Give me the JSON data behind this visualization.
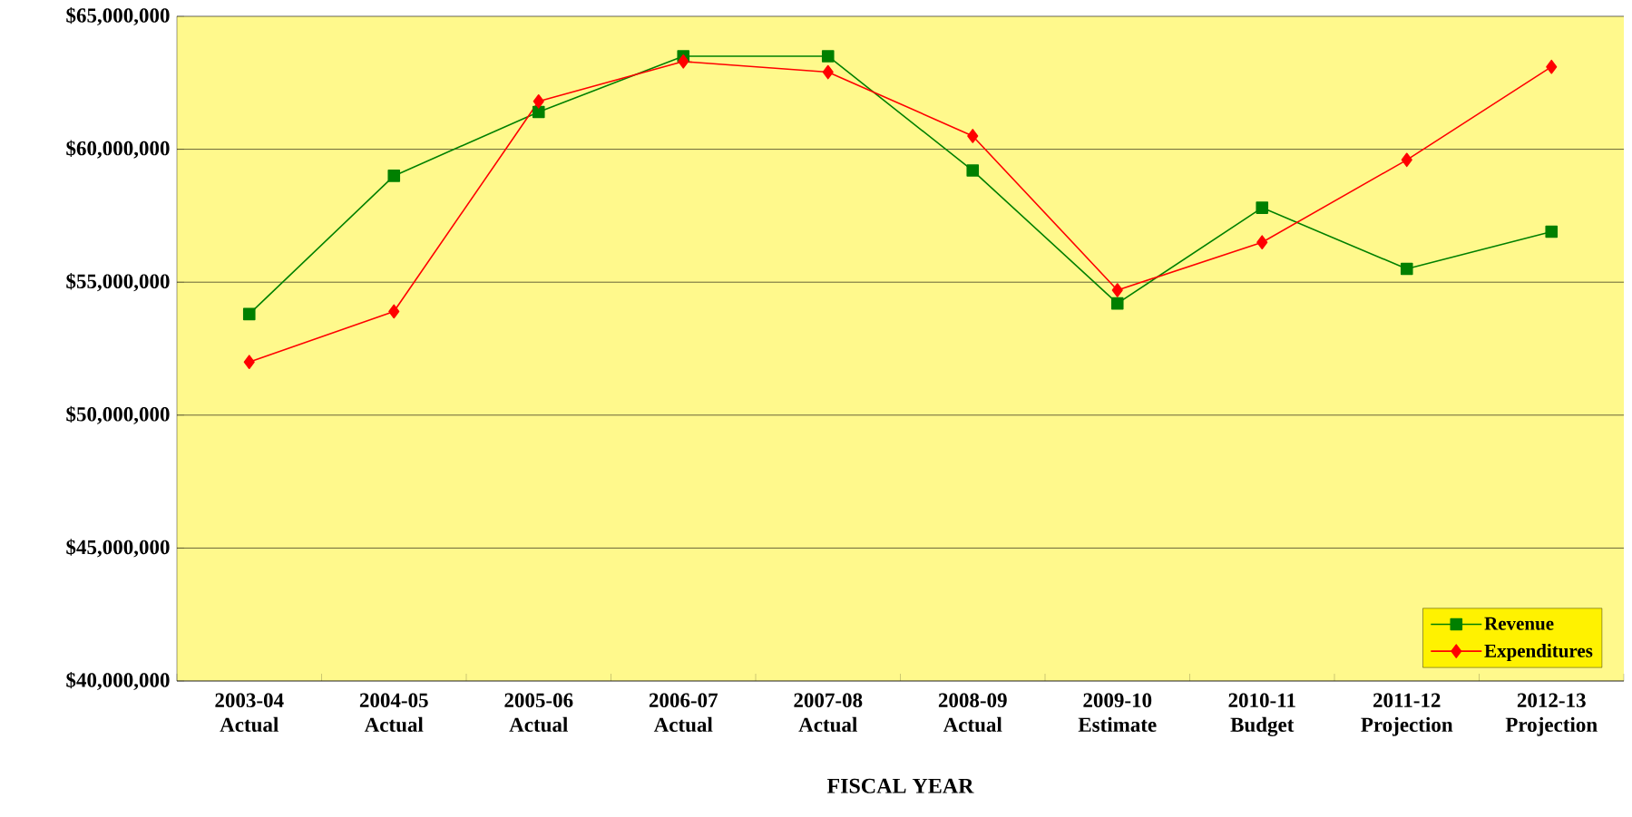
{
  "chart_data": {
    "type": "line",
    "xlabel": "FISCAL YEAR",
    "categories": [
      "2003-04 Actual",
      "2004-05 Actual",
      "2005-06 Actual",
      "2006-07 Actual",
      "2007-08 Actual",
      "2008-09 Actual",
      "2009-10 Estimate",
      "2010-11 Budget",
      "2011-12 Projection",
      "2012-13 Projection"
    ],
    "series": [
      {
        "name": "Revenue",
        "color": "#008000",
        "marker": "square",
        "values": [
          53800000,
          59000000,
          61400000,
          63500000,
          63500000,
          59200000,
          54200000,
          57800000,
          55500000,
          56900000
        ]
      },
      {
        "name": "Expenditures",
        "color": "#ff0000",
        "marker": "diamond",
        "values": [
          52000000,
          53900000,
          61800000,
          63300000,
          62900000,
          60500000,
          54700000,
          56500000,
          59600000,
          63100000
        ]
      }
    ],
    "ylim": [
      40000000,
      65000000
    ],
    "yticks": [
      {
        "value": 40000000,
        "label": "$40,000,000"
      },
      {
        "value": 45000000,
        "label": "$45,000,000"
      },
      {
        "value": 50000000,
        "label": "$50,000,000"
      },
      {
        "value": 55000000,
        "label": "$55,000,000"
      },
      {
        "value": 60000000,
        "label": "$60,000,000"
      },
      {
        "value": 65000000,
        "label": "$65,000,000"
      }
    ],
    "grid": "y",
    "legend": "bottom right",
    "line_style": "solid"
  }
}
